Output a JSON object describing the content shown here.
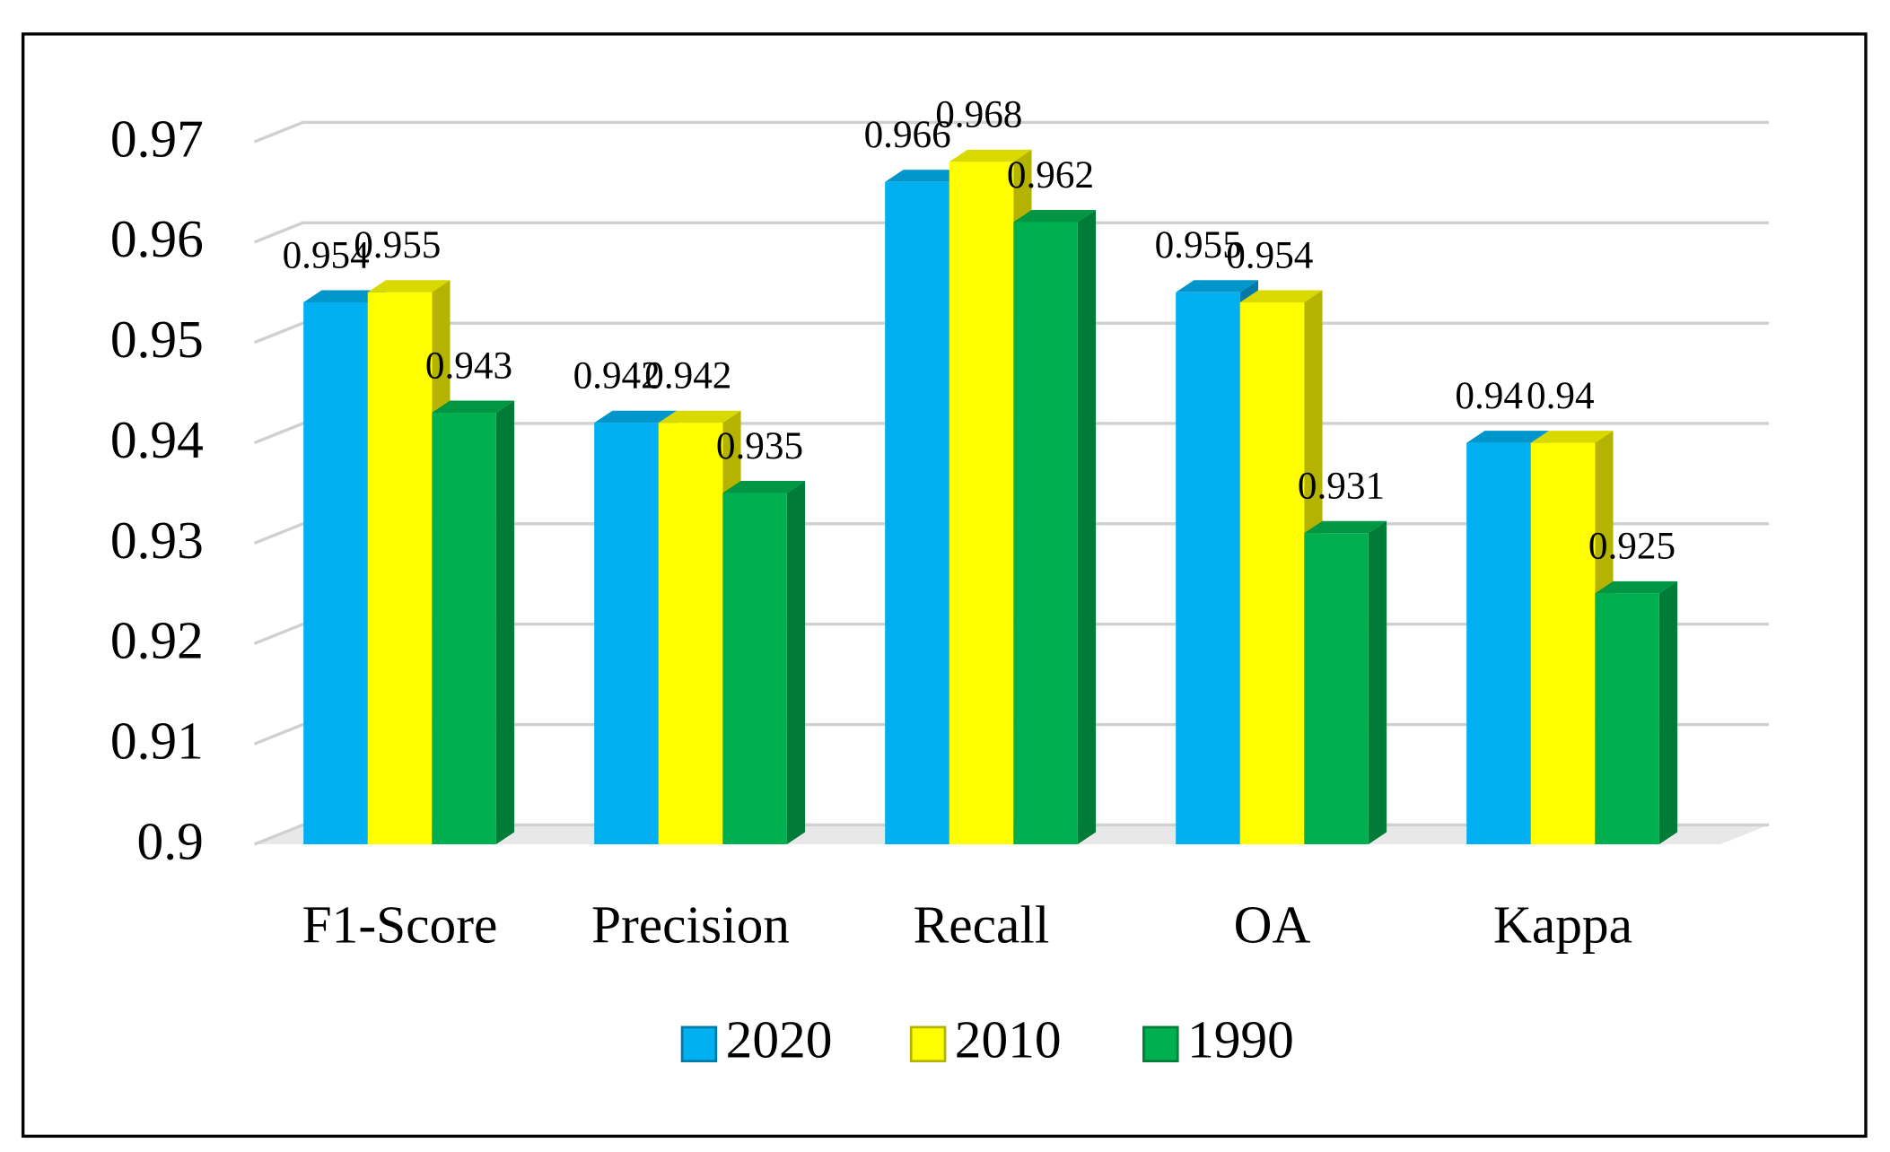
{
  "chart_data": {
    "type": "bar3d",
    "categories": [
      "F1-Score",
      "Precision",
      "Recall",
      "OA",
      "Kappa"
    ],
    "series": [
      {
        "name": "2020",
        "color": "#00b0f0",
        "values": [
          0.954,
          0.942,
          0.966,
          0.955,
          0.94
        ]
      },
      {
        "name": "2010",
        "color": "#ffff00",
        "values": [
          0.955,
          0.942,
          0.968,
          0.954,
          0.94
        ]
      },
      {
        "name": "1990",
        "color": "#00b050",
        "values": [
          0.943,
          0.935,
          0.962,
          0.931,
          0.925
        ]
      }
    ],
    "ylim": [
      0.9,
      0.97
    ],
    "yticks": [
      0.9,
      0.91,
      0.92,
      0.93,
      0.94,
      0.95,
      0.96,
      0.97
    ],
    "grid": true,
    "legend": "bottom"
  }
}
